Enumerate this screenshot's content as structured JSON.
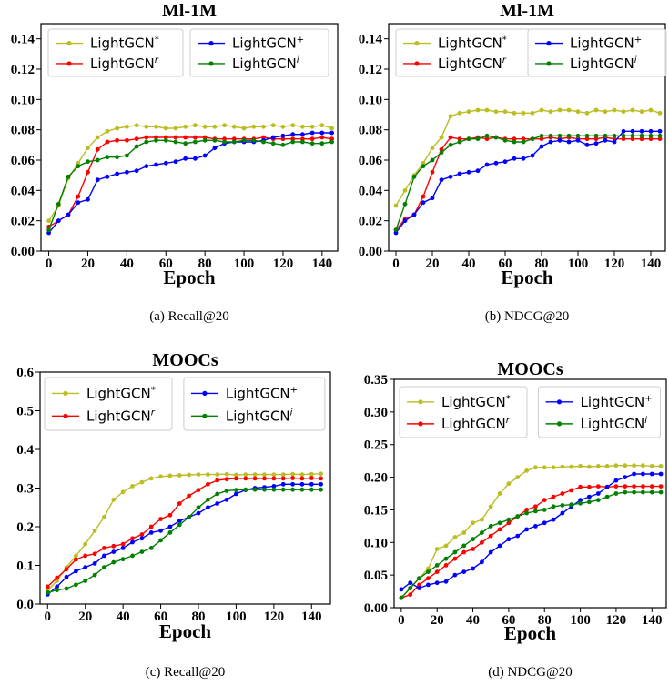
{
  "colors": {
    "star": "#bcbd22",
    "r": "#ff0000",
    "plus": "#0000ff",
    "i": "#008000"
  },
  "chart_data": [
    {
      "type": "line",
      "title": "Ml-1M",
      "caption_id": "(a)",
      "caption_text": "Recall@20",
      "xlabel": "Epoch",
      "xlim": [
        -4,
        148
      ],
      "ylim": [
        0,
        0.15
      ],
      "xticks": [
        "0",
        "20",
        "40",
        "60",
        "80",
        "100",
        "120",
        "140"
      ],
      "yticks": [
        "0.00",
        "0.02",
        "0.04",
        "0.06",
        "0.08",
        "0.10",
        "0.12",
        "0.14"
      ],
      "legend_layout": "a",
      "x": [
        0,
        5,
        10,
        15,
        20,
        25,
        30,
        35,
        40,
        45,
        50,
        55,
        60,
        65,
        70,
        75,
        80,
        85,
        90,
        95,
        100,
        105,
        110,
        115,
        120,
        125,
        130,
        135,
        140,
        145
      ],
      "series": [
        {
          "name": "LightGCN*",
          "label_base": "LightGCN",
          "label_sup": "*",
          "color_key": "star",
          "values": [
            0.02,
            0.03,
            0.048,
            0.058,
            0.068,
            0.075,
            0.079,
            0.081,
            0.082,
            0.083,
            0.082,
            0.082,
            0.081,
            0.081,
            0.082,
            0.083,
            0.082,
            0.082,
            0.083,
            0.082,
            0.081,
            0.082,
            0.082,
            0.083,
            0.082,
            0.083,
            0.082,
            0.082,
            0.083,
            0.081
          ]
        },
        {
          "name": "LightGCNr",
          "label_base": "LightGCN",
          "label_sup": "r",
          "color_key": "r",
          "values": [
            0.016,
            0.02,
            0.024,
            0.036,
            0.052,
            0.067,
            0.072,
            0.073,
            0.073,
            0.074,
            0.075,
            0.075,
            0.075,
            0.075,
            0.075,
            0.075,
            0.075,
            0.074,
            0.074,
            0.074,
            0.074,
            0.074,
            0.075,
            0.074,
            0.074,
            0.074,
            0.074,
            0.074,
            0.075,
            0.074
          ]
        },
        {
          "name": "LightGCN+",
          "label_base": "LightGCN",
          "label_sup": "+",
          "color_key": "plus",
          "values": [
            0.012,
            0.02,
            0.024,
            0.032,
            0.034,
            0.047,
            0.049,
            0.051,
            0.052,
            0.053,
            0.056,
            0.057,
            0.058,
            0.059,
            0.061,
            0.061,
            0.063,
            0.068,
            0.071,
            0.072,
            0.072,
            0.072,
            0.073,
            0.075,
            0.076,
            0.077,
            0.077,
            0.078,
            0.078,
            0.078
          ]
        },
        {
          "name": "LightGCNi",
          "label_base": "LightGCN",
          "label_sup": "i",
          "color_key": "i",
          "values": [
            0.014,
            0.031,
            0.049,
            0.056,
            0.059,
            0.06,
            0.062,
            0.062,
            0.063,
            0.069,
            0.072,
            0.073,
            0.073,
            0.072,
            0.071,
            0.072,
            0.073,
            0.073,
            0.072,
            0.072,
            0.073,
            0.073,
            0.072,
            0.071,
            0.07,
            0.072,
            0.072,
            0.071,
            0.071,
            0.072
          ]
        }
      ]
    },
    {
      "type": "line",
      "title": "Ml-1M",
      "caption_id": "(b)",
      "caption_text": "NDCG@20",
      "xlabel": "Epoch",
      "xlim": [
        -4,
        148
      ],
      "ylim": [
        0,
        0.15
      ],
      "xticks": [
        "0",
        "20",
        "40",
        "60",
        "80",
        "100",
        "120",
        "140"
      ],
      "yticks": [
        "0.00",
        "0.02",
        "0.04",
        "0.06",
        "0.08",
        "0.10",
        "0.12",
        "0.14"
      ],
      "legend_layout": "a",
      "x": [
        0,
        5,
        10,
        15,
        20,
        25,
        30,
        35,
        40,
        45,
        50,
        55,
        60,
        65,
        70,
        75,
        80,
        85,
        90,
        95,
        100,
        105,
        110,
        115,
        120,
        125,
        130,
        135,
        140,
        145
      ],
      "series": [
        {
          "name": "LightGCN*",
          "label_base": "LightGCN",
          "label_sup": "*",
          "color_key": "star",
          "values": [
            0.03,
            0.04,
            0.05,
            0.058,
            0.068,
            0.075,
            0.089,
            0.091,
            0.092,
            0.093,
            0.093,
            0.092,
            0.092,
            0.091,
            0.091,
            0.091,
            0.093,
            0.092,
            0.093,
            0.093,
            0.092,
            0.091,
            0.093,
            0.092,
            0.093,
            0.092,
            0.093,
            0.092,
            0.093,
            0.091
          ]
        },
        {
          "name": "LightGCNr",
          "label_base": "LightGCN",
          "label_sup": "r",
          "color_key": "r",
          "values": [
            0.014,
            0.021,
            0.024,
            0.036,
            0.052,
            0.067,
            0.075,
            0.074,
            0.074,
            0.075,
            0.074,
            0.075,
            0.074,
            0.074,
            0.074,
            0.074,
            0.074,
            0.075,
            0.074,
            0.075,
            0.074,
            0.074,
            0.074,
            0.075,
            0.074,
            0.074,
            0.074,
            0.074,
            0.074,
            0.074
          ]
        },
        {
          "name": "LightGCN+",
          "label_base": "LightGCN",
          "label_sup": "+",
          "color_key": "plus",
          "values": [
            0.012,
            0.02,
            0.024,
            0.032,
            0.035,
            0.047,
            0.049,
            0.051,
            0.052,
            0.053,
            0.057,
            0.058,
            0.059,
            0.061,
            0.061,
            0.063,
            0.069,
            0.072,
            0.073,
            0.072,
            0.073,
            0.07,
            0.071,
            0.073,
            0.072,
            0.079,
            0.079,
            0.079,
            0.079,
            0.079
          ]
        },
        {
          "name": "LightGCNi",
          "label_base": "LightGCN",
          "label_sup": "i",
          "color_key": "i",
          "values": [
            0.014,
            0.031,
            0.049,
            0.056,
            0.06,
            0.065,
            0.07,
            0.072,
            0.074,
            0.074,
            0.076,
            0.075,
            0.073,
            0.072,
            0.072,
            0.074,
            0.076,
            0.076,
            0.076,
            0.076,
            0.076,
            0.076,
            0.076,
            0.076,
            0.076,
            0.076,
            0.076,
            0.076,
            0.076,
            0.076
          ]
        }
      ]
    },
    {
      "type": "line",
      "title": "MOOCs",
      "caption_id": "(c)",
      "caption_text": "Recall@20",
      "xlabel": "Epoch",
      "xlim": [
        -4,
        150
      ],
      "ylim": [
        0,
        0.6
      ],
      "xticks": [
        "0",
        "20",
        "40",
        "60",
        "80",
        "100",
        "120",
        "140"
      ],
      "yticks": [
        "0.0",
        "0.1",
        "0.2",
        "0.3",
        "0.4",
        "0.5",
        "0.6"
      ],
      "legend_layout": "c",
      "x": [
        0,
        5,
        10,
        15,
        20,
        25,
        30,
        35,
        40,
        45,
        50,
        55,
        60,
        65,
        70,
        75,
        80,
        85,
        90,
        95,
        100,
        105,
        110,
        115,
        120,
        125,
        130,
        135,
        140,
        145
      ],
      "series": [
        {
          "name": "LightGCN*",
          "label_base": "LightGCN",
          "label_sup": "*",
          "color_key": "star",
          "values": [
            0.035,
            0.06,
            0.095,
            0.125,
            0.155,
            0.19,
            0.225,
            0.27,
            0.29,
            0.305,
            0.315,
            0.325,
            0.33,
            0.332,
            0.333,
            0.334,
            0.335,
            0.335,
            0.335,
            0.336,
            0.334,
            0.335,
            0.335,
            0.335,
            0.335,
            0.335,
            0.336,
            0.335,
            0.336,
            0.337
          ]
        },
        {
          "name": "LightGCNr",
          "label_base": "LightGCN",
          "label_sup": "r",
          "color_key": "r",
          "values": [
            0.045,
            0.068,
            0.09,
            0.115,
            0.125,
            0.13,
            0.145,
            0.15,
            0.155,
            0.17,
            0.18,
            0.2,
            0.22,
            0.23,
            0.26,
            0.28,
            0.295,
            0.31,
            0.32,
            0.323,
            0.325,
            0.325,
            0.325,
            0.325,
            0.325,
            0.325,
            0.326,
            0.325,
            0.326,
            0.325
          ]
        },
        {
          "name": "LightGCN+",
          "label_base": "LightGCN",
          "label_sup": "+",
          "color_key": "plus",
          "values": [
            0.025,
            0.045,
            0.07,
            0.085,
            0.095,
            0.105,
            0.125,
            0.135,
            0.145,
            0.16,
            0.17,
            0.185,
            0.19,
            0.2,
            0.215,
            0.225,
            0.235,
            0.25,
            0.26,
            0.27,
            0.285,
            0.295,
            0.3,
            0.302,
            0.305,
            0.31,
            0.31,
            0.31,
            0.31,
            0.31
          ]
        },
        {
          "name": "LightGCNi",
          "label_base": "LightGCN",
          "label_sup": "i",
          "color_key": "i",
          "values": [
            0.03,
            0.036,
            0.04,
            0.05,
            0.06,
            0.075,
            0.095,
            0.108,
            0.116,
            0.125,
            0.135,
            0.145,
            0.165,
            0.185,
            0.205,
            0.225,
            0.25,
            0.27,
            0.285,
            0.293,
            0.295,
            0.296,
            0.296,
            0.296,
            0.296,
            0.296,
            0.296,
            0.296,
            0.296,
            0.296
          ]
        }
      ]
    },
    {
      "type": "line",
      "title": "MOOCs",
      "caption_id": "(d)",
      "caption_text": "NDCG@20",
      "xlabel": "Epoch",
      "xlim": [
        -4,
        148
      ],
      "ylim": [
        0,
        0.35
      ],
      "xticks": [
        "0",
        "20",
        "40",
        "60",
        "80",
        "100",
        "120",
        "140"
      ],
      "yticks": [
        "0.00",
        "0.05",
        "0.10",
        "0.15",
        "0.20",
        "0.25",
        "0.30",
        "0.35"
      ],
      "legend_layout": "d",
      "x": [
        0,
        5,
        10,
        15,
        20,
        25,
        30,
        35,
        40,
        45,
        50,
        55,
        60,
        65,
        70,
        75,
        80,
        85,
        90,
        95,
        100,
        105,
        110,
        115,
        120,
        125,
        130,
        135,
        140,
        145
      ],
      "series": [
        {
          "name": "LightGCN*",
          "label_base": "LightGCN",
          "label_sup": "*",
          "color_key": "star",
          "values": [
            0.015,
            0.03,
            0.045,
            0.06,
            0.09,
            0.095,
            0.108,
            0.115,
            0.13,
            0.135,
            0.155,
            0.175,
            0.19,
            0.2,
            0.21,
            0.215,
            0.215,
            0.215,
            0.216,
            0.216,
            0.217,
            0.216,
            0.217,
            0.217,
            0.218,
            0.218,
            0.218,
            0.218,
            0.217,
            0.217
          ]
        },
        {
          "name": "LightGCNr",
          "label_base": "LightGCN",
          "label_sup": "r",
          "color_key": "r",
          "values": [
            0.015,
            0.02,
            0.035,
            0.045,
            0.055,
            0.065,
            0.075,
            0.085,
            0.09,
            0.1,
            0.11,
            0.12,
            0.13,
            0.14,
            0.15,
            0.155,
            0.165,
            0.17,
            0.175,
            0.18,
            0.185,
            0.185,
            0.186,
            0.185,
            0.186,
            0.186,
            0.186,
            0.186,
            0.186,
            0.186
          ]
        },
        {
          "name": "LightGCN+",
          "label_base": "LightGCN",
          "label_sup": "+",
          "color_key": "plus",
          "values": [
            0.028,
            0.038,
            0.03,
            0.035,
            0.038,
            0.04,
            0.05,
            0.055,
            0.06,
            0.07,
            0.085,
            0.095,
            0.105,
            0.11,
            0.12,
            0.125,
            0.13,
            0.135,
            0.145,
            0.155,
            0.165,
            0.17,
            0.175,
            0.185,
            0.195,
            0.2,
            0.205,
            0.205,
            0.205,
            0.205
          ]
        },
        {
          "name": "LightGCNi",
          "label_base": "LightGCN",
          "label_sup": "i",
          "color_key": "i",
          "values": [
            0.015,
            0.03,
            0.045,
            0.055,
            0.065,
            0.075,
            0.085,
            0.095,
            0.105,
            0.115,
            0.125,
            0.13,
            0.135,
            0.14,
            0.145,
            0.148,
            0.15,
            0.155,
            0.157,
            0.158,
            0.16,
            0.162,
            0.165,
            0.17,
            0.175,
            0.177,
            0.177,
            0.177,
            0.177,
            0.177
          ]
        }
      ]
    }
  ]
}
